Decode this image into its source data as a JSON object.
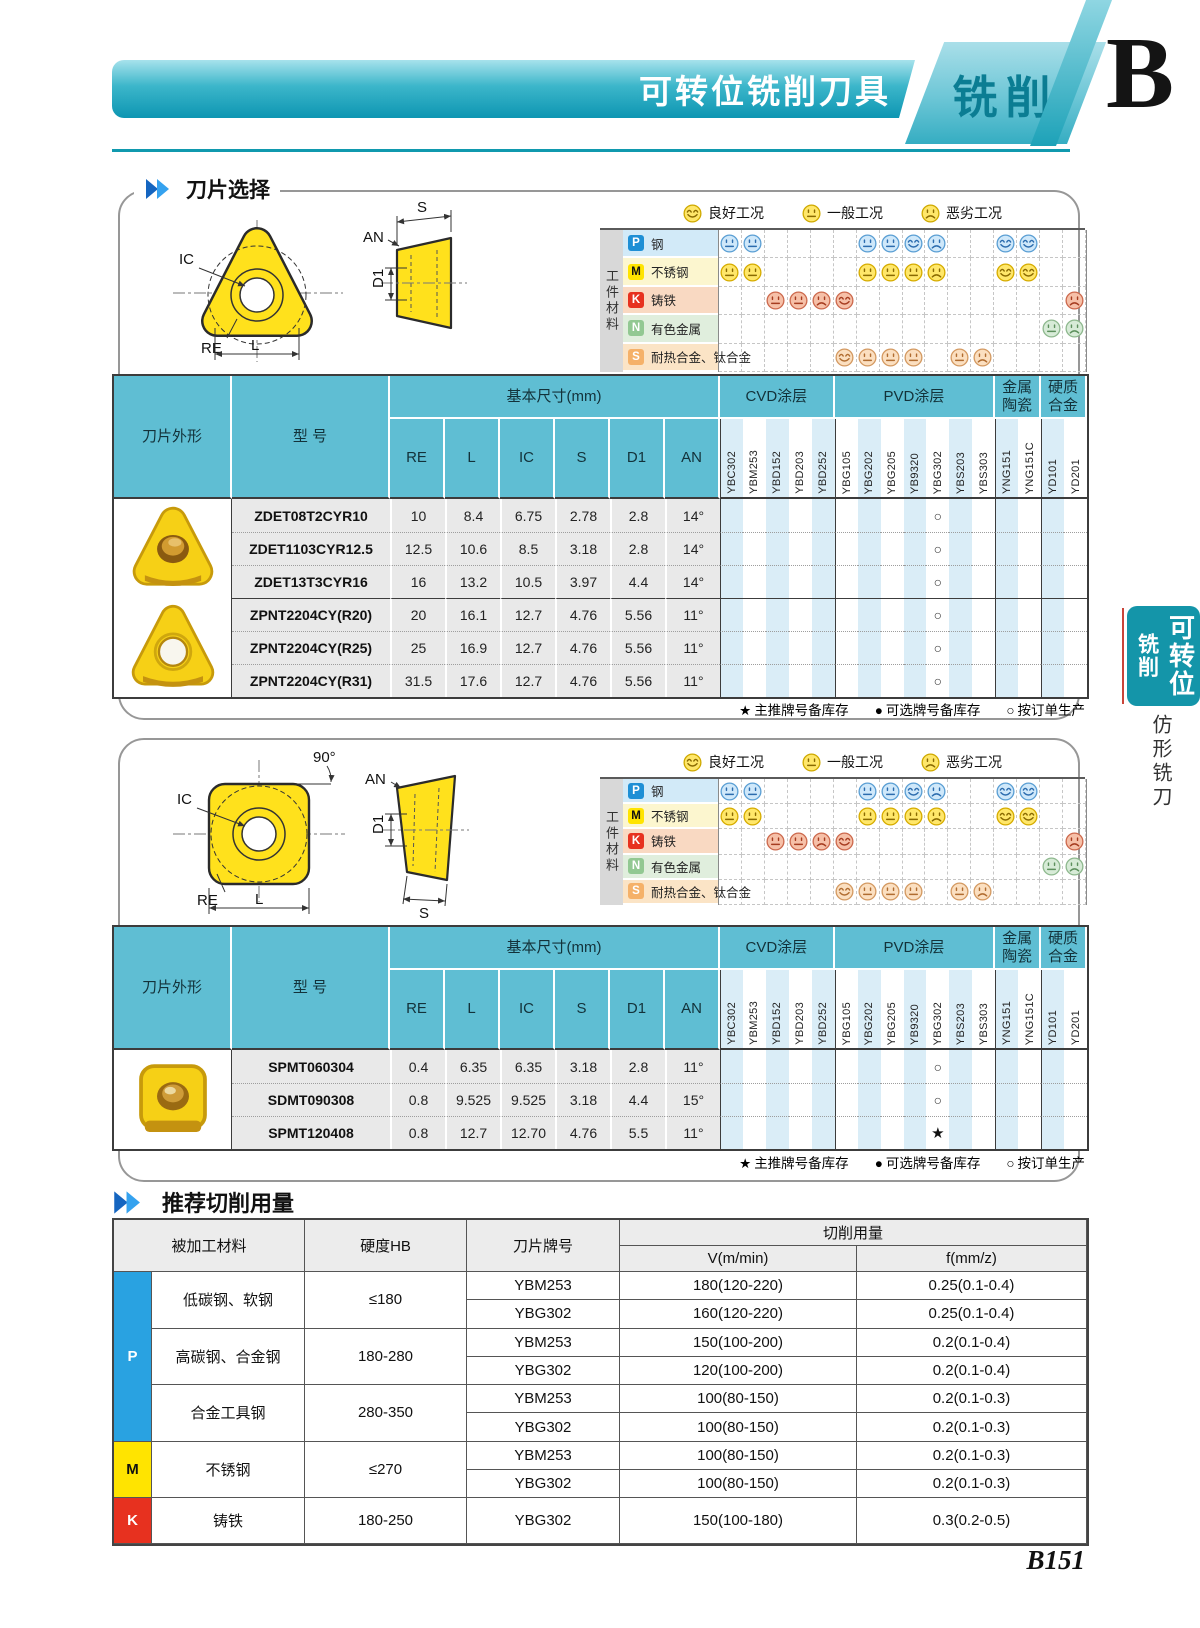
{
  "header": {
    "bar_title": "可转位铣削刀具",
    "tab_label": "铣削",
    "chapter_letter": "B"
  },
  "sidebar": {
    "tab_title": "可转位",
    "tab_subtitle": "铣削",
    "below_label": "仿形铣刀"
  },
  "page_number": "B151",
  "condition_legend": [
    {
      "kind": "good",
      "label": "良好工况"
    },
    {
      "kind": "neutral",
      "label": "一般工况"
    },
    {
      "kind": "bad",
      "label": "恶劣工况"
    }
  ],
  "workpiece_axis_label": "工件材料",
  "material_rows": [
    {
      "letter": "P",
      "name": "钢",
      "chip_color": "#1e8fd5",
      "chip_text_color": "#ffffff",
      "band_color": "#d2eaf8",
      "faces": {
        "YBC302": "neutral",
        "YBM253": "neutral",
        "YBG202": "neutral",
        "YBG205": "neutral",
        "YB9320": "good",
        "YBG302": "bad",
        "YNG151": "good",
        "YNG151C": "good"
      },
      "palette": {
        "bg": "#cfe8fa",
        "rim": "#5b9fd4",
        "fx": "#2c6cae"
      }
    },
    {
      "letter": "M",
      "name": "不锈钢",
      "chip_color": "#ffe400",
      "chip_text_color": "#111111",
      "band_color": "#fcf6cf",
      "faces": {
        "YBC302": "neutral",
        "YBM253": "neutral",
        "YBG202": "neutral",
        "YBG205": "neutral",
        "YB9320": "neutral",
        "YBG302": "bad",
        "YNG151": "good",
        "YNG151C": "good"
      },
      "palette": {
        "bg": "#ffe76a",
        "rim": "#d6ac00",
        "fx": "#8a6a00"
      }
    },
    {
      "letter": "K",
      "name": "铸铁",
      "chip_color": "#e7311f",
      "chip_text_color": "#ffffff",
      "band_color": "#f9d9c2",
      "faces": {
        "YBD152": "neutral",
        "YBD203": "neutral",
        "YBD252": "bad",
        "YBG105": "good",
        "YD201": "bad"
      },
      "palette": {
        "bg": "#f6c0a8",
        "rim": "#cd6a4e",
        "fx": "#a63c20"
      }
    },
    {
      "letter": "N",
      "name": "有色金属",
      "chip_color": "#92c892",
      "chip_text_color": "#ffffff",
      "band_color": "#e0eedd",
      "faces": {
        "YD101": "neutral",
        "YD201": "bad"
      },
      "palette": {
        "bg": "#d7ebd7",
        "rim": "#8fb98f",
        "fx": "#5d905d"
      }
    },
    {
      "letter": "S",
      "name": "耐热合金、钛合金",
      "chip_color": "#f5b169",
      "chip_text_color": "#ffffff",
      "band_color": "#fbe4c6",
      "faces": {
        "YBG105": "good",
        "YBG202": "neutral",
        "YBG205": "neutral",
        "YB9320": "neutral",
        "YBS203": "neutral",
        "YBS303": "bad"
      },
      "palette": {
        "bg": "#fbdfc0",
        "rim": "#d49a62",
        "fx": "#b06c30"
      }
    }
  ],
  "grade_groups": [
    {
      "label": "CVD涂层",
      "grades": [
        "YBC302",
        "YBM253",
        "YBD152",
        "YBD203",
        "YBD252"
      ]
    },
    {
      "label": "PVD涂层",
      "grades": [
        "YBG105",
        "YBG202",
        "YBG205",
        "YB9320",
        "YBG302",
        "YBS203",
        "YBS303"
      ]
    },
    {
      "label": "金属陶瓷",
      "grades": [
        "YNG151",
        "YNG151C"
      ]
    },
    {
      "label": "硬质合金",
      "grades": [
        "YD101",
        "YD201"
      ]
    }
  ],
  "table_headers": {
    "shape": "刀片外形",
    "model": "型 号",
    "dims": "基本尺寸(mm)",
    "dim_cols": [
      "RE",
      "L",
      "IC",
      "S",
      "D1",
      "AN"
    ]
  },
  "stock_legend": [
    {
      "symbol": "★",
      "label": "主推牌号备库存"
    },
    {
      "symbol": "●",
      "label": "可选牌号备库存"
    },
    {
      "symbol": "○",
      "label": "按订单生产"
    }
  ],
  "panel1": {
    "title": "刀片选择",
    "drawing_labels": {
      "s": "S",
      "an": "AN",
      "d1": "D1",
      "ic": "IC",
      "re": "RE",
      "l": "L"
    },
    "rows": [
      {
        "model": "ZDET08T2CYR10",
        "dims": [
          "10",
          "8.4",
          "6.75",
          "2.78",
          "2.8",
          "14°"
        ],
        "marks": {
          "YBG302": "○"
        }
      },
      {
        "model": "ZDET1103CYR12.5",
        "dims": [
          "12.5",
          "10.6",
          "8.5",
          "3.18",
          "2.8",
          "14°"
        ],
        "marks": {
          "YBG302": "○"
        }
      },
      {
        "model": "ZDET13T3CYR16",
        "dims": [
          "16",
          "13.2",
          "10.5",
          "3.97",
          "4.4",
          "14°"
        ],
        "marks": {
          "YBG302": "○"
        }
      },
      {
        "model": "ZPNT2204CY(R20)",
        "dims": [
          "20",
          "16.1",
          "12.7",
          "4.76",
          "5.56",
          "11°"
        ],
        "marks": {
          "YBG302": "○"
        }
      },
      {
        "model": "ZPNT2204CY(R25)",
        "dims": [
          "25",
          "16.9",
          "12.7",
          "4.76",
          "5.56",
          "11°"
        ],
        "marks": {
          "YBG302": "○"
        }
      },
      {
        "model": "ZPNT2204CY(R31)",
        "dims": [
          "31.5",
          "17.6",
          "12.7",
          "4.76",
          "5.56",
          "11°"
        ],
        "marks": {
          "YBG302": "○"
        }
      }
    ]
  },
  "panel2": {
    "drawing_labels": {
      "angle": "90°",
      "an": "AN",
      "d1": "D1",
      "ic": "IC",
      "re": "RE",
      "l": "L",
      "s": "S"
    },
    "rows": [
      {
        "model": "SPMT060304",
        "dims": [
          "0.4",
          "6.35",
          "6.35",
          "3.18",
          "2.8",
          "11°"
        ],
        "marks": {
          "YBG302": "○"
        }
      },
      {
        "model": "SDMT090308",
        "dims": [
          "0.8",
          "9.525",
          "9.525",
          "3.18",
          "4.4",
          "15°"
        ],
        "marks": {
          "YBG302": "○"
        }
      },
      {
        "model": "SPMT120408",
        "dims": [
          "0.8",
          "12.7",
          "12.70",
          "4.76",
          "5.5",
          "11°"
        ],
        "marks": {
          "YBG302": "★"
        }
      }
    ]
  },
  "cutting": {
    "title": "推荐切削用量",
    "headers": {
      "material": "被加工材料",
      "hardness": "硬度HB",
      "grade": "刀片牌号",
      "usage": "切削用量",
      "v": "V(m/min)",
      "f": "f(mm/z)"
    },
    "groups": [
      {
        "letter": "P",
        "color": "#29a2e1",
        "text_color": "#ffffff",
        "materials": [
          {
            "name": "低碳钢、软钢",
            "hb": "≤180",
            "rows": [
              [
                "YBM253",
                "180(120-220)",
                "0.25(0.1-0.4)"
              ],
              [
                "YBG302",
                "160(120-220)",
                "0.25(0.1-0.4)"
              ]
            ]
          },
          {
            "name": "高碳钢、合金钢",
            "hb": "180-280",
            "rows": [
              [
                "YBM253",
                "150(100-200)",
                "0.2(0.1-0.4)"
              ],
              [
                "YBG302",
                "120(100-200)",
                "0.2(0.1-0.4)"
              ]
            ]
          },
          {
            "name": "合金工具钢",
            "hb": "280-350",
            "rows": [
              [
                "YBM253",
                "100(80-150)",
                "0.2(0.1-0.3)"
              ],
              [
                "YBG302",
                "100(80-150)",
                "0.2(0.1-0.3)"
              ]
            ]
          }
        ]
      },
      {
        "letter": "M",
        "color": "#ffe400",
        "text_color": "#111111",
        "materials": [
          {
            "name": "不锈钢",
            "hb": "≤270",
            "rows": [
              [
                "YBM253",
                "100(80-150)",
                "0.2(0.1-0.3)"
              ],
              [
                "YBG302",
                "100(80-150)",
                "0.2(0.1-0.3)"
              ]
            ]
          }
        ]
      },
      {
        "letter": "K",
        "color": "#e7311f",
        "text_color": "#ffffff",
        "materials": [
          {
            "name": "铸铁",
            "hb": "180-250",
            "rows": [
              [
                "YBG302",
                "150(100-180)",
                "0.3(0.2-0.5)"
              ]
            ]
          }
        ]
      }
    ]
  }
}
